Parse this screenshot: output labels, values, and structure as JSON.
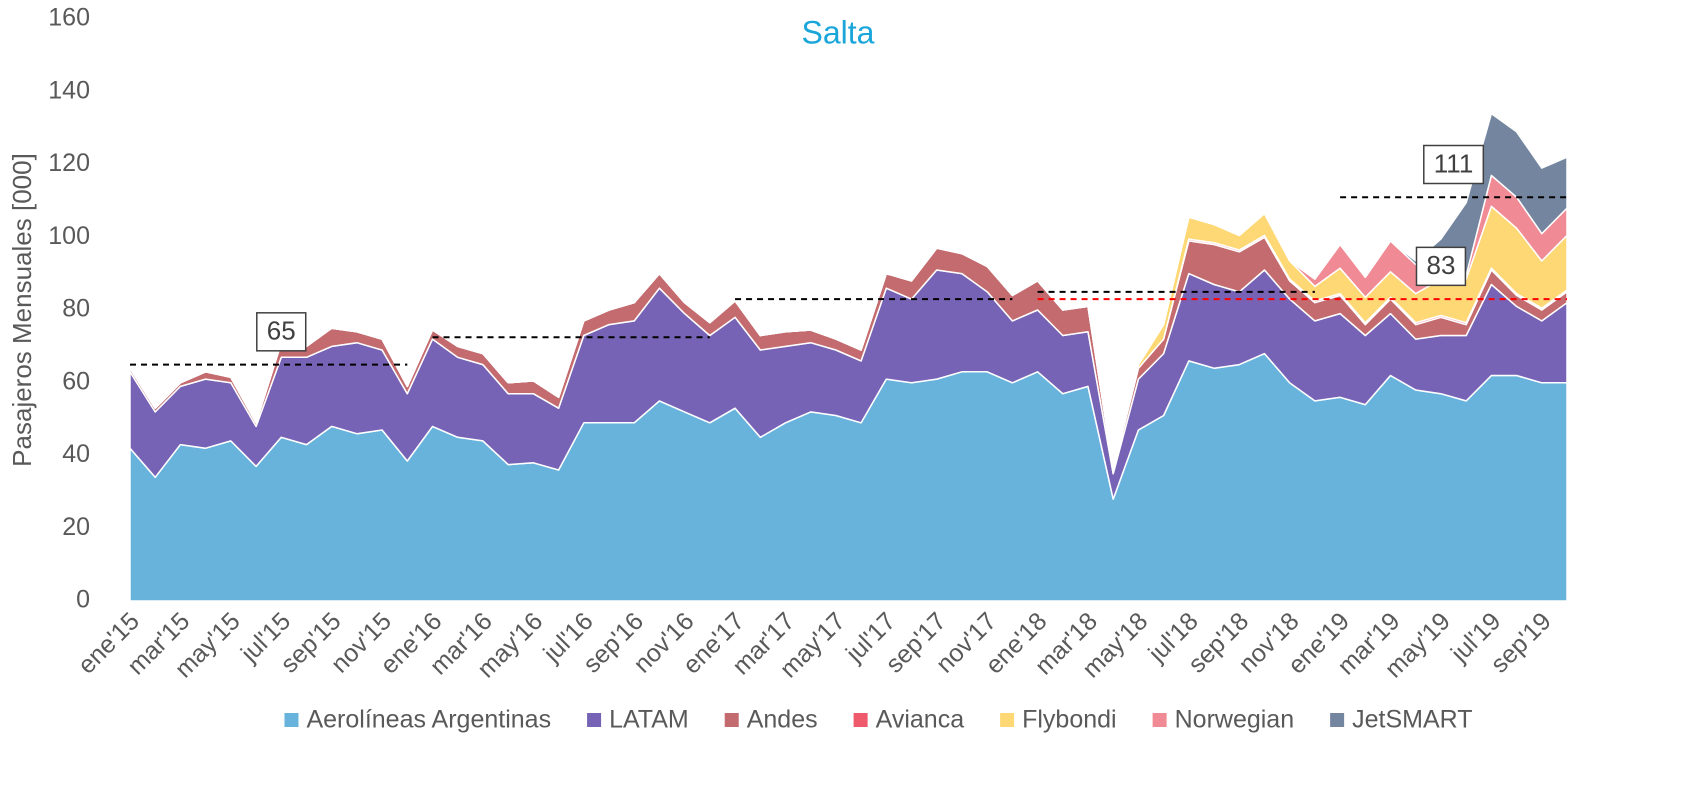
{
  "chart_data": {
    "type": "stacked_area",
    "title": "Salta",
    "y_label": "Pasajeros Mensuales [000]",
    "categories": [
      "ene'15",
      null,
      "mar'15",
      null,
      "may'15",
      null,
      "jul'15",
      null,
      "sep'15",
      null,
      "nov'15",
      null,
      "ene'16",
      null,
      "mar'16",
      null,
      "may'16",
      null,
      "jul'16",
      null,
      "sep'16",
      null,
      "nov'16",
      null,
      "ene'17",
      null,
      "mar'17",
      null,
      "may'17",
      null,
      "jul'17",
      null,
      "sep'17",
      null,
      "nov'17",
      null,
      "ene'18",
      null,
      "mar'18",
      null,
      "may'18",
      null,
      "jul'18",
      null,
      "sep'18",
      null,
      "nov'18",
      null,
      "ene'19",
      null,
      "mar'19",
      null,
      "may'19",
      null,
      "jul'19",
      null,
      "sep'19",
      null
    ],
    "series": [
      {
        "name": "Aerolíneas Argentinas",
        "color": "#67b3dc",
        "values": [
          42,
          34,
          43,
          42,
          44,
          37,
          45,
          43,
          48,
          46,
          47,
          38.5,
          48,
          45,
          44,
          37.5,
          38,
          36,
          49,
          49,
          49,
          55,
          52,
          49,
          53,
          45,
          49,
          52,
          51,
          49,
          61,
          60,
          61,
          63,
          63,
          60,
          63,
          57,
          59,
          28,
          47,
          51,
          66,
          64,
          65,
          68,
          60,
          55,
          56,
          54,
          62,
          58,
          57,
          55,
          62,
          62,
          60,
          60
        ]
      },
      {
        "name": "LATAM",
        "color": "#7763b5",
        "values": [
          21,
          18,
          16,
          19,
          16,
          11,
          22,
          24,
          22,
          25,
          22,
          18.5,
          24,
          22,
          21,
          19.5,
          19,
          17,
          24,
          27,
          28,
          31,
          27,
          24,
          25,
          24,
          21,
          19,
          18,
          17,
          25,
          23,
          30,
          27,
          22,
          17,
          17,
          16,
          15,
          7,
          14,
          17,
          24,
          23,
          20,
          23,
          23,
          22,
          23,
          19,
          17,
          14,
          16,
          18,
          25,
          19,
          17,
          22
        ]
      },
      {
        "name": "Andes",
        "color": "#c46b6f",
        "values": [
          1,
          1,
          1,
          2,
          1.5,
          1,
          4,
          3,
          5,
          3,
          3,
          2,
          2.5,
          3,
          3,
          3,
          3.5,
          3,
          4,
          4,
          5,
          4,
          3,
          3.5,
          4.5,
          4,
          4,
          3.5,
          3,
          3,
          4,
          5,
          6,
          5.5,
          7,
          7,
          8,
          7,
          7,
          1,
          3,
          4,
          9,
          11,
          11,
          9,
          5,
          5,
          5,
          3,
          4,
          4,
          5,
          3,
          4,
          3,
          3,
          3
        ]
      },
      {
        "name": "Avianca",
        "color": "#ee5a6c",
        "values": [
          0,
          0,
          0,
          0,
          0,
          0,
          0,
          0,
          0,
          0,
          0,
          0,
          0,
          0,
          0,
          0,
          0,
          0,
          0,
          0,
          0,
          0,
          0,
          0,
          0,
          0,
          0,
          0,
          0,
          0,
          0,
          0,
          0,
          0,
          0,
          0,
          0,
          0,
          0,
          0,
          0,
          0,
          0.5,
          0.5,
          0.5,
          0.5,
          0.5,
          0.5,
          0.5,
          0.5,
          0.5,
          0.5,
          0.5,
          0.5,
          0.5,
          0.5,
          0.5,
          0.5
        ]
      },
      {
        "name": "Flybondi",
        "color": "#fdd874",
        "values": [
          0,
          0,
          0,
          0,
          0,
          0,
          0,
          0,
          0,
          0,
          0,
          0,
          0,
          0,
          0,
          0,
          0,
          0,
          0,
          0,
          0,
          0,
          0,
          0,
          0,
          0,
          0,
          0,
          0,
          0,
          0,
          0,
          0,
          0,
          0,
          0,
          0,
          0,
          0,
          0,
          1,
          4,
          6,
          5,
          4,
          6,
          5,
          4,
          7,
          7,
          7,
          8,
          10,
          12,
          17,
          18,
          13,
          15
        ]
      },
      {
        "name": "Norwegian",
        "color": "#f08b96",
        "values": [
          0,
          0,
          0,
          0,
          0,
          0,
          0,
          0,
          0,
          0,
          0,
          0,
          0,
          0,
          0,
          0,
          0,
          0,
          0,
          0,
          0,
          0,
          0,
          0,
          0,
          0,
          0,
          0,
          0,
          0,
          0,
          0,
          0,
          0,
          0,
          0,
          0,
          0,
          0,
          0,
          0,
          0,
          0,
          0,
          0,
          0,
          0,
          2,
          6.5,
          5.5,
          8.5,
          8,
          1,
          1,
          8.5,
          8.5,
          7.5,
          7.5
        ]
      },
      {
        "name": "JetSMART",
        "color": "#74869f",
        "values": [
          0,
          0,
          0,
          0,
          0,
          0,
          0,
          0,
          0,
          0,
          0,
          0,
          0,
          0,
          0,
          0,
          0,
          0,
          0,
          0,
          0,
          0,
          0,
          0,
          0,
          0,
          0,
          0,
          0,
          0,
          0,
          0,
          0,
          0,
          0,
          0,
          0,
          0,
          0,
          0,
          0,
          0,
          0,
          0,
          0,
          0,
          0,
          0,
          0,
          0,
          0,
          1,
          10,
          20,
          17,
          18,
          18,
          14
        ]
      }
    ],
    "ylim": [
      0,
      160
    ],
    "yticks": [
      0,
      20,
      40,
      60,
      80,
      100,
      120,
      140,
      160
    ],
    "reference_lines": [
      {
        "value": 65,
        "from": 0,
        "to": 11,
        "color": "#000000",
        "boxed": true
      },
      {
        "value": 72.5,
        "from": 12,
        "to": 23,
        "color": "#000000"
      },
      {
        "value": 83,
        "from": 24,
        "to": 35,
        "color": "#000000"
      },
      {
        "value": 85,
        "from": 36,
        "to": 47,
        "color": "#000000"
      },
      {
        "value": 111,
        "from": 48,
        "to": 57,
        "color": "#000000",
        "boxed": true
      },
      {
        "value": 83,
        "from": 36,
        "to": 57,
        "color": "#ff0000",
        "boxed": true
      }
    ],
    "legend": "bottom"
  }
}
